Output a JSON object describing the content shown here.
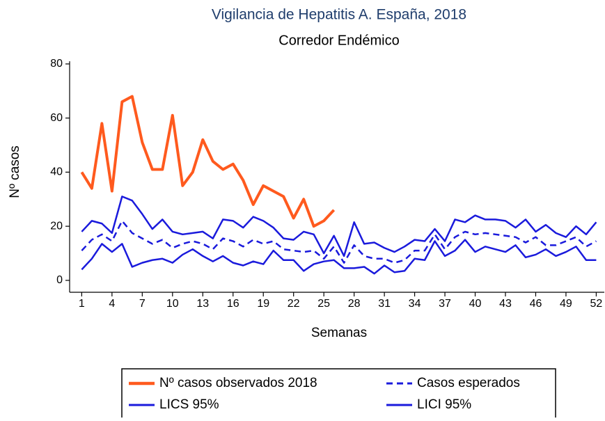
{
  "chart_data": {
    "type": "line",
    "title": "Vigilancia de Hepatitis A. España, 2018",
    "subtitle": "Corredor Endémico",
    "x_label": "Semanas",
    "y_label": "Nº casos",
    "x": [
      1,
      2,
      3,
      4,
      5,
      6,
      7,
      8,
      9,
      10,
      11,
      12,
      13,
      14,
      15,
      16,
      17,
      18,
      19,
      20,
      21,
      22,
      23,
      24,
      25,
      26,
      27,
      28,
      29,
      30,
      31,
      32,
      33,
      34,
      35,
      36,
      37,
      38,
      39,
      40,
      41,
      42,
      43,
      44,
      45,
      46,
      47,
      48,
      49,
      50,
      51,
      52
    ],
    "xlim": [
      -0.2,
      52.8
    ],
    "xticks": [
      1,
      4,
      7,
      10,
      13,
      16,
      19,
      22,
      25,
      28,
      31,
      34,
      37,
      40,
      43,
      46,
      49,
      52
    ],
    "ylim": [
      -4.4,
      81
    ],
    "yticks": [
      0,
      20,
      40,
      60,
      80
    ],
    "legend": "bottom",
    "series": [
      {
        "name": "Nº casos observados 2018",
        "color": "#ff5a1e",
        "width": 4,
        "dashed": false,
        "values": [
          40,
          34,
          58,
          33,
          66,
          68,
          51,
          41,
          41,
          61,
          35,
          40,
          52,
          44,
          41,
          43,
          37,
          28,
          35,
          33,
          31,
          23,
          30,
          20,
          22,
          26,
          null,
          null,
          null,
          null,
          null,
          null,
          null,
          null,
          null,
          null,
          null,
          null,
          null,
          null,
          null,
          null,
          null,
          null,
          null,
          null,
          null,
          null,
          null,
          null,
          null,
          null
        ]
      },
      {
        "name": "Casos esperados",
        "color": "#1a1adc",
        "width": 2.5,
        "dashed": true,
        "values": [
          11,
          15,
          17,
          14.5,
          22,
          17.5,
          15.5,
          13.5,
          15,
          12,
          13.5,
          14.5,
          13.5,
          11.5,
          15.5,
          14.5,
          12.5,
          15,
          13.5,
          14.5,
          11.5,
          11,
          10.5,
          11,
          8,
          12.5,
          6.5,
          13,
          9,
          8,
          8,
          6.5,
          7.5,
          11,
          11,
          17,
          11.5,
          16,
          18,
          17,
          17.5,
          17,
          16.5,
          16,
          14,
          16,
          13,
          13,
          14.5,
          16,
          12.5,
          14.5
        ]
      },
      {
        "name": "LICS 95%",
        "color": "#1a1adc",
        "width": 2.5,
        "dashed": false,
        "values": [
          18,
          22,
          21,
          17.5,
          31,
          29.5,
          24.5,
          19,
          22.5,
          18,
          17,
          17.5,
          18,
          15.5,
          22.5,
          22,
          19.5,
          23.5,
          22,
          19.5,
          15.5,
          15,
          18,
          17,
          10,
          16.5,
          9,
          21.5,
          13.5,
          14,
          12,
          10.5,
          12.5,
          15,
          14.5,
          19,
          14.5,
          22.5,
          21.5,
          24,
          22.5,
          22.5,
          22,
          19.5,
          22.5,
          18,
          20.5,
          17.5,
          16,
          20,
          17,
          21.5
        ]
      },
      {
        "name": "LICI 95%",
        "color": "#1a1adc",
        "width": 2.5,
        "dashed": false,
        "values": [
          4,
          8,
          13.5,
          10.5,
          13.5,
          5,
          6.5,
          7.5,
          8,
          6.5,
          9.5,
          11.5,
          9,
          7,
          9,
          6.5,
          5.5,
          7,
          6,
          11,
          7.5,
          7.5,
          3.5,
          6,
          7,
          7.5,
          4.5,
          4.5,
          5,
          2.5,
          5.5,
          3,
          3.5,
          8,
          7.5,
          14.5,
          9,
          11,
          15,
          10.5,
          12.5,
          11.5,
          10.5,
          13,
          8.5,
          9.5,
          11.5,
          9,
          10.5,
          12.5,
          7.5,
          7.5
        ]
      }
    ]
  }
}
